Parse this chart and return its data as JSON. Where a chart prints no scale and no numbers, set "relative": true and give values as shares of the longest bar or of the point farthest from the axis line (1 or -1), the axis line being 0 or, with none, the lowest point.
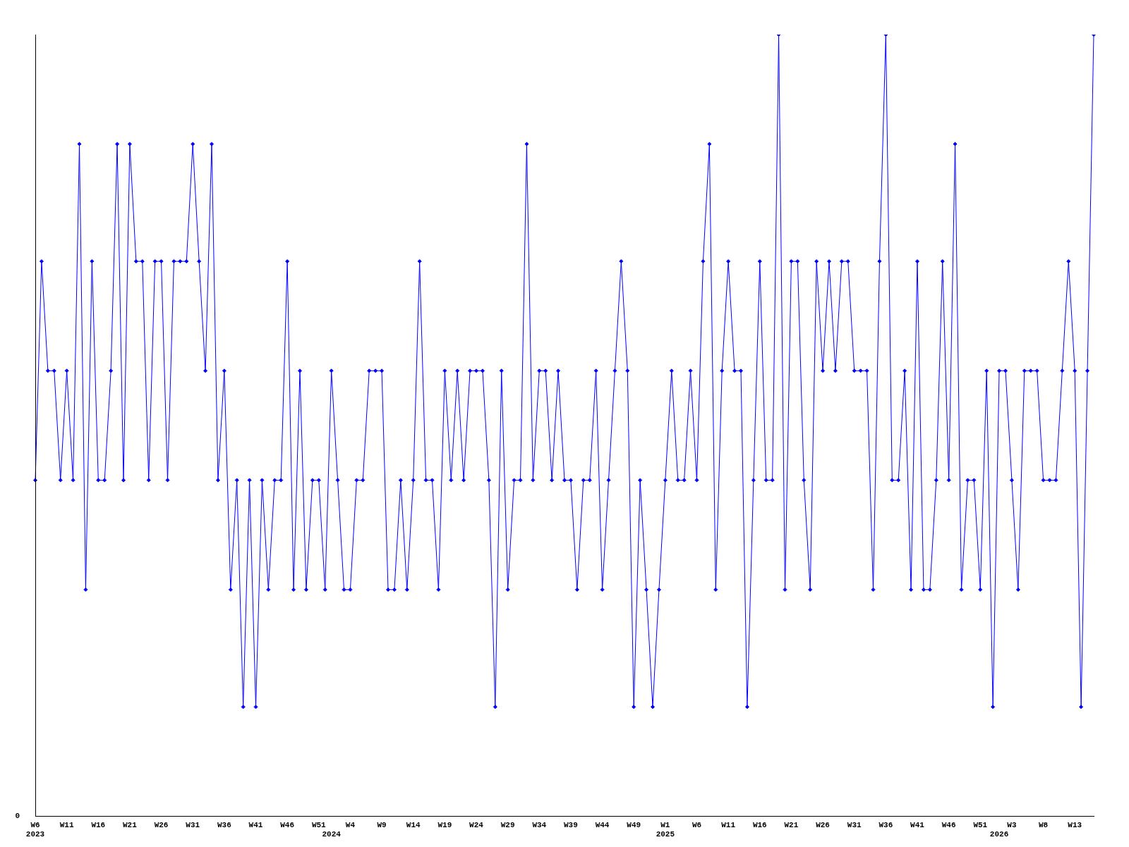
{
  "chart_data": {
    "type": "line",
    "relative": true,
    "color": "#0000ff",
    "marker": "diamond",
    "line_style": "solid",
    "annotations": [
      "0"
    ],
    "categories": [
      "W6\n2023",
      null,
      null,
      null,
      null,
      "W11",
      null,
      null,
      null,
      null,
      "W16",
      null,
      null,
      null,
      null,
      "W21",
      null,
      null,
      null,
      null,
      "W26",
      null,
      null,
      null,
      null,
      "W31",
      null,
      null,
      null,
      null,
      "W36",
      null,
      null,
      null,
      null,
      "W41",
      null,
      null,
      null,
      null,
      "W46",
      null,
      null,
      null,
      null,
      "W51",
      null,
      "\n2024",
      null,
      null,
      "W4",
      null,
      null,
      null,
      null,
      "W9",
      null,
      null,
      null,
      null,
      "W14",
      null,
      null,
      null,
      null,
      "W19",
      null,
      null,
      null,
      null,
      "W24",
      null,
      null,
      null,
      null,
      "W29",
      null,
      null,
      null,
      null,
      "W34",
      null,
      null,
      null,
      null,
      "W39",
      null,
      null,
      null,
      null,
      "W44",
      null,
      null,
      null,
      null,
      "W49",
      null,
      null,
      null,
      null,
      "W1\n2025",
      null,
      null,
      null,
      null,
      "W6",
      null,
      null,
      null,
      null,
      "W11",
      null,
      null,
      null,
      null,
      "W16",
      null,
      null,
      null,
      null,
      "W21",
      null,
      null,
      null,
      null,
      "W26",
      null,
      null,
      null,
      null,
      "W31",
      null,
      null,
      null,
      null,
      "W36",
      null,
      null,
      null,
      null,
      "W41",
      null,
      null,
      null,
      null,
      "W46",
      null,
      null,
      null,
      null,
      "W51",
      null,
      null,
      "\n2026",
      null,
      "W3",
      null,
      null,
      null,
      null,
      "W8",
      null,
      null,
      null,
      null,
      "W13",
      null,
      null,
      null
    ],
    "values": [
      0.43,
      0.71,
      0.57,
      0.57,
      0.43,
      0.57,
      0.43,
      0.86,
      0.29,
      0.71,
      0.43,
      0.43,
      0.57,
      0.86,
      0.43,
      0.86,
      0.71,
      0.71,
      0.43,
      0.71,
      0.71,
      0.43,
      0.71,
      0.71,
      0.71,
      0.86,
      0.71,
      0.57,
      0.86,
      0.43,
      0.57,
      0.29,
      0.43,
      0.14,
      0.43,
      0.14,
      0.43,
      0.29,
      0.43,
      0.43,
      0.71,
      0.29,
      0.57,
      0.29,
      0.43,
      0.43,
      0.29,
      0.57,
      0.43,
      0.29,
      0.29,
      0.43,
      0.43,
      0.57,
      0.57,
      0.57,
      0.29,
      0.29,
      0.43,
      0.29,
      0.43,
      0.71,
      0.43,
      0.43,
      0.29,
      0.57,
      0.43,
      0.57,
      0.43,
      0.57,
      0.57,
      0.57,
      0.43,
      0.14,
      0.57,
      0.29,
      0.43,
      0.43,
      0.86,
      0.43,
      0.57,
      0.57,
      0.43,
      0.57,
      0.43,
      0.43,
      0.29,
      0.43,
      0.43,
      0.57,
      0.29,
      0.43,
      0.57,
      0.71,
      0.57,
      0.14,
      0.43,
      0.29,
      0.14,
      0.29,
      0.43,
      0.57,
      0.43,
      0.43,
      0.57,
      0.43,
      0.71,
      0.86,
      0.29,
      0.57,
      0.71,
      0.57,
      0.57,
      0.14,
      0.43,
      0.71,
      0.43,
      0.43,
      1,
      0.29,
      0.71,
      0.71,
      0.43,
      0.29,
      0.71,
      0.57,
      0.71,
      0.57,
      0.71,
      0.71,
      0.57,
      0.57,
      0.57,
      0.29,
      0.71,
      1,
      0.43,
      0.43,
      0.57,
      0.29,
      0.71,
      0.29,
      0.29,
      0.43,
      0.71,
      0.43,
      0.86,
      0.29,
      0.43,
      0.43,
      0.29,
      0.57,
      0.14,
      0.57,
      0.57,
      0.43,
      0.29,
      0.57,
      0.57,
      0.57,
      0.43,
      0.43,
      0.43,
      0.57,
      0.71,
      0.57,
      0.14,
      0.57,
      1
    ]
  }
}
